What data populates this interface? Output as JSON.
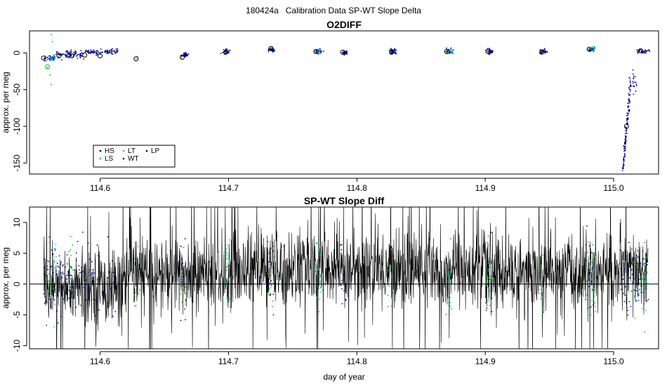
{
  "figure": {
    "title": "180424a   Calibration Data SP-WT Slope Delta"
  },
  "chart_data": [
    {
      "type": "scatter",
      "title": "O2DIFF",
      "xlabel": "",
      "ylabel": "approx. per meg",
      "xlim": [
        114.545,
        115.035
      ],
      "ylim": [
        -165,
        30
      ],
      "x_ticks": [
        "114.6",
        "114.7",
        "114.8",
        "114.9",
        "115.0"
      ],
      "x_tick_values": [
        114.6,
        114.7,
        114.8,
        114.9,
        115.0
      ],
      "y_ticks": [
        "-150",
        "-100",
        "-50",
        "0"
      ],
      "y_tick_values": [
        -150,
        -100,
        -50,
        0
      ],
      "legend": {
        "placement": "bottom-left",
        "entries": [
          {
            "label": "HS",
            "color": "#000000"
          },
          {
            "label": "LS",
            "color": "#00cc00"
          },
          {
            "label": "LT",
            "color": "#00cccc"
          },
          {
            "label": "WT",
            "color": "#000000"
          },
          {
            "label": "LP",
            "color": "#000000"
          }
        ]
      },
      "series": [
        {
          "color": "#00008b",
          "segments": [
            {
              "x0": 114.556,
              "x1": 114.565,
              "y": -7,
              "spread": 4
            },
            {
              "x0": 114.565,
              "x1": 114.588,
              "y": -2,
              "spread": 5
            },
            {
              "x0": 114.588,
              "x1": 114.6,
              "y": 1,
              "spread": 4
            },
            {
              "x0": 114.6,
              "x1": 114.614,
              "y": 2,
              "spread": 4
            },
            {
              "x0": 115.012,
              "x1": 115.018,
              "y": -40,
              "spread": 15
            },
            {
              "x0": 115.018,
              "x1": 115.028,
              "y": 2,
              "spread": 3
            }
          ],
          "drop": {
            "x0": 115.007,
            "x1": 115.013,
            "y0": -160,
            "y1": -45
          },
          "clusters": [
            {
              "x": 114.666,
              "y": -3
            },
            {
              "x": 114.698,
              "y": 1
            },
            {
              "x": 114.734,
              "y": 4
            },
            {
              "x": 114.77,
              "y": 2
            },
            {
              "x": 114.791,
              "y": 0
            },
            {
              "x": 114.828,
              "y": 2
            },
            {
              "x": 114.872,
              "y": 2
            },
            {
              "x": 114.904,
              "y": 2
            },
            {
              "x": 114.945,
              "y": 2
            },
            {
              "x": 114.983,
              "y": 5
            }
          ]
        },
        {
          "color": "#00cc00",
          "points": [
            [
              114.558,
              -11
            ],
            [
              114.559,
              -20
            ],
            [
              114.561,
              -30
            ],
            [
              114.562,
              -43
            ],
            [
              114.563,
              -5
            ],
            [
              114.575,
              -3
            ],
            [
              114.6,
              -2
            ],
            [
              114.628,
              -8
            ],
            [
              114.629,
              -5
            ],
            [
              114.663,
              -7
            ],
            [
              114.697,
              -2
            ],
            [
              114.733,
              7
            ],
            [
              114.768,
              0
            ],
            [
              114.79,
              -1
            ],
            [
              114.826,
              1
            ],
            [
              114.87,
              1
            ],
            [
              114.902,
              1
            ],
            [
              114.943,
              -1
            ],
            [
              114.98,
              4
            ],
            [
              115.019,
              -1
            ]
          ]
        },
        {
          "color": "#00cccc",
          "points": [
            [
              114.562,
              25
            ],
            [
              114.563,
              15
            ],
            [
              114.565,
              -8
            ],
            [
              114.7,
              2
            ],
            [
              114.736,
              3
            ],
            [
              114.771,
              2
            ],
            [
              114.873,
              2
            ],
            [
              114.984,
              6
            ]
          ]
        }
      ],
      "open_circles": [
        {
          "x": 114.556,
          "y": -7,
          "color": "#000000"
        },
        {
          "x": 114.559,
          "y": -19,
          "color": "#00cc00"
        },
        {
          "x": 114.563,
          "y": -8,
          "color": "#00cccc"
        },
        {
          "x": 114.568,
          "y": -4,
          "color": "#000000"
        },
        {
          "x": 114.578,
          "y": -4,
          "color": "#000000"
        },
        {
          "x": 114.588,
          "y": -3,
          "color": "#000000"
        },
        {
          "x": 114.6,
          "y": -4,
          "color": "#000000"
        },
        {
          "x": 114.628,
          "y": -8,
          "color": "#000000"
        },
        {
          "x": 114.664,
          "y": -6,
          "color": "#000000"
        },
        {
          "x": 114.698,
          "y": 1,
          "color": "#000000"
        },
        {
          "x": 114.733,
          "y": 6,
          "color": "#000000"
        },
        {
          "x": 114.768,
          "y": 2,
          "color": "#000000"
        },
        {
          "x": 114.771,
          "y": 2,
          "color": "#00cccc"
        },
        {
          "x": 114.789,
          "y": 1,
          "color": "#000000"
        },
        {
          "x": 114.827,
          "y": 1,
          "color": "#000000"
        },
        {
          "x": 114.87,
          "y": 2,
          "color": "#000000"
        },
        {
          "x": 114.873,
          "y": 2,
          "color": "#00cccc"
        },
        {
          "x": 114.902,
          "y": 2,
          "color": "#000000"
        },
        {
          "x": 114.944,
          "y": 1,
          "color": "#000000"
        },
        {
          "x": 114.981,
          "y": 5,
          "color": "#000000"
        },
        {
          "x": 114.984,
          "y": 6,
          "color": "#00cccc"
        },
        {
          "x": 115.01,
          "y": -100,
          "color": "#000000"
        },
        {
          "x": 115.021,
          "y": 3,
          "color": "#000000"
        }
      ]
    },
    {
      "type": "line",
      "title": "SP-WT Slope Diff",
      "xlabel": "day of year",
      "ylabel": "approx. per meg",
      "xlim": [
        114.545,
        115.035
      ],
      "ylim": [
        -10.5,
        12.5
      ],
      "x_ticks": [
        "114.6",
        "114.7",
        "114.8",
        "114.9",
        "115.0"
      ],
      "x_tick_values": [
        114.6,
        114.7,
        114.8,
        114.9,
        115.0
      ],
      "y_ticks": [
        "-10",
        "-5",
        "0",
        "5",
        "10"
      ],
      "y_tick_values": [
        -10,
        -5,
        0,
        5,
        10
      ],
      "reference_line": 0,
      "series": [
        {
          "color": "#000000",
          "x_range": [
            114.556,
            115.027
          ],
          "mean_levels": [
            {
              "x0": 114.556,
              "x1": 114.62,
              "mean": -0.5
            },
            {
              "x0": 114.62,
              "x1": 114.7,
              "mean": 1.5
            },
            {
              "x0": 114.7,
              "x1": 114.9,
              "mean": 2.5
            },
            {
              "x0": 114.9,
              "x1": 115.027,
              "mean": 1.8
            }
          ],
          "noise_sd": 3.2
        },
        {
          "color": "#00008b",
          "clusters": [
            {
              "x0": 114.556,
              "x1": 114.6
            },
            {
              "x0": 114.606,
              "x1": 114.612
            },
            {
              "x0": 114.662,
              "x1": 114.667
            },
            {
              "x0": 114.73,
              "x1": 114.736
            },
            {
              "x0": 114.787,
              "x1": 114.792
            },
            {
              "x0": 114.9,
              "x1": 114.906
            },
            {
              "x0": 114.978,
              "x1": 114.986
            },
            {
              "x0": 115.005,
              "x1": 115.027
            }
          ]
        },
        {
          "color": "#00cc00",
          "clusters": [
            {
              "x0": 114.558,
              "x1": 114.564
            },
            {
              "x0": 114.575,
              "x1": 114.58
            },
            {
              "x0": 114.626,
              "x1": 114.631
            },
            {
              "x0": 114.662,
              "x1": 114.667
            },
            {
              "x0": 114.696,
              "x1": 114.701
            },
            {
              "x0": 114.73,
              "x1": 114.736
            },
            {
              "x0": 114.766,
              "x1": 114.772
            },
            {
              "x0": 114.824,
              "x1": 114.829
            },
            {
              "x0": 114.868,
              "x1": 114.874
            },
            {
              "x0": 114.9,
              "x1": 114.906
            },
            {
              "x0": 114.941,
              "x1": 114.946
            },
            {
              "x0": 114.978,
              "x1": 114.986
            },
            {
              "x0": 115.015,
              "x1": 115.027
            }
          ]
        },
        {
          "color": "#00cccc",
          "clusters": [
            {
              "x0": 114.563,
              "x1": 114.566
            },
            {
              "x0": 114.698,
              "x1": 114.701
            },
            {
              "x0": 114.77,
              "x1": 114.773
            },
            {
              "x0": 114.871,
              "x1": 114.874
            },
            {
              "x0": 114.982,
              "x1": 114.986
            },
            {
              "x0": 115.022,
              "x1": 115.027
            }
          ]
        }
      ]
    }
  ]
}
